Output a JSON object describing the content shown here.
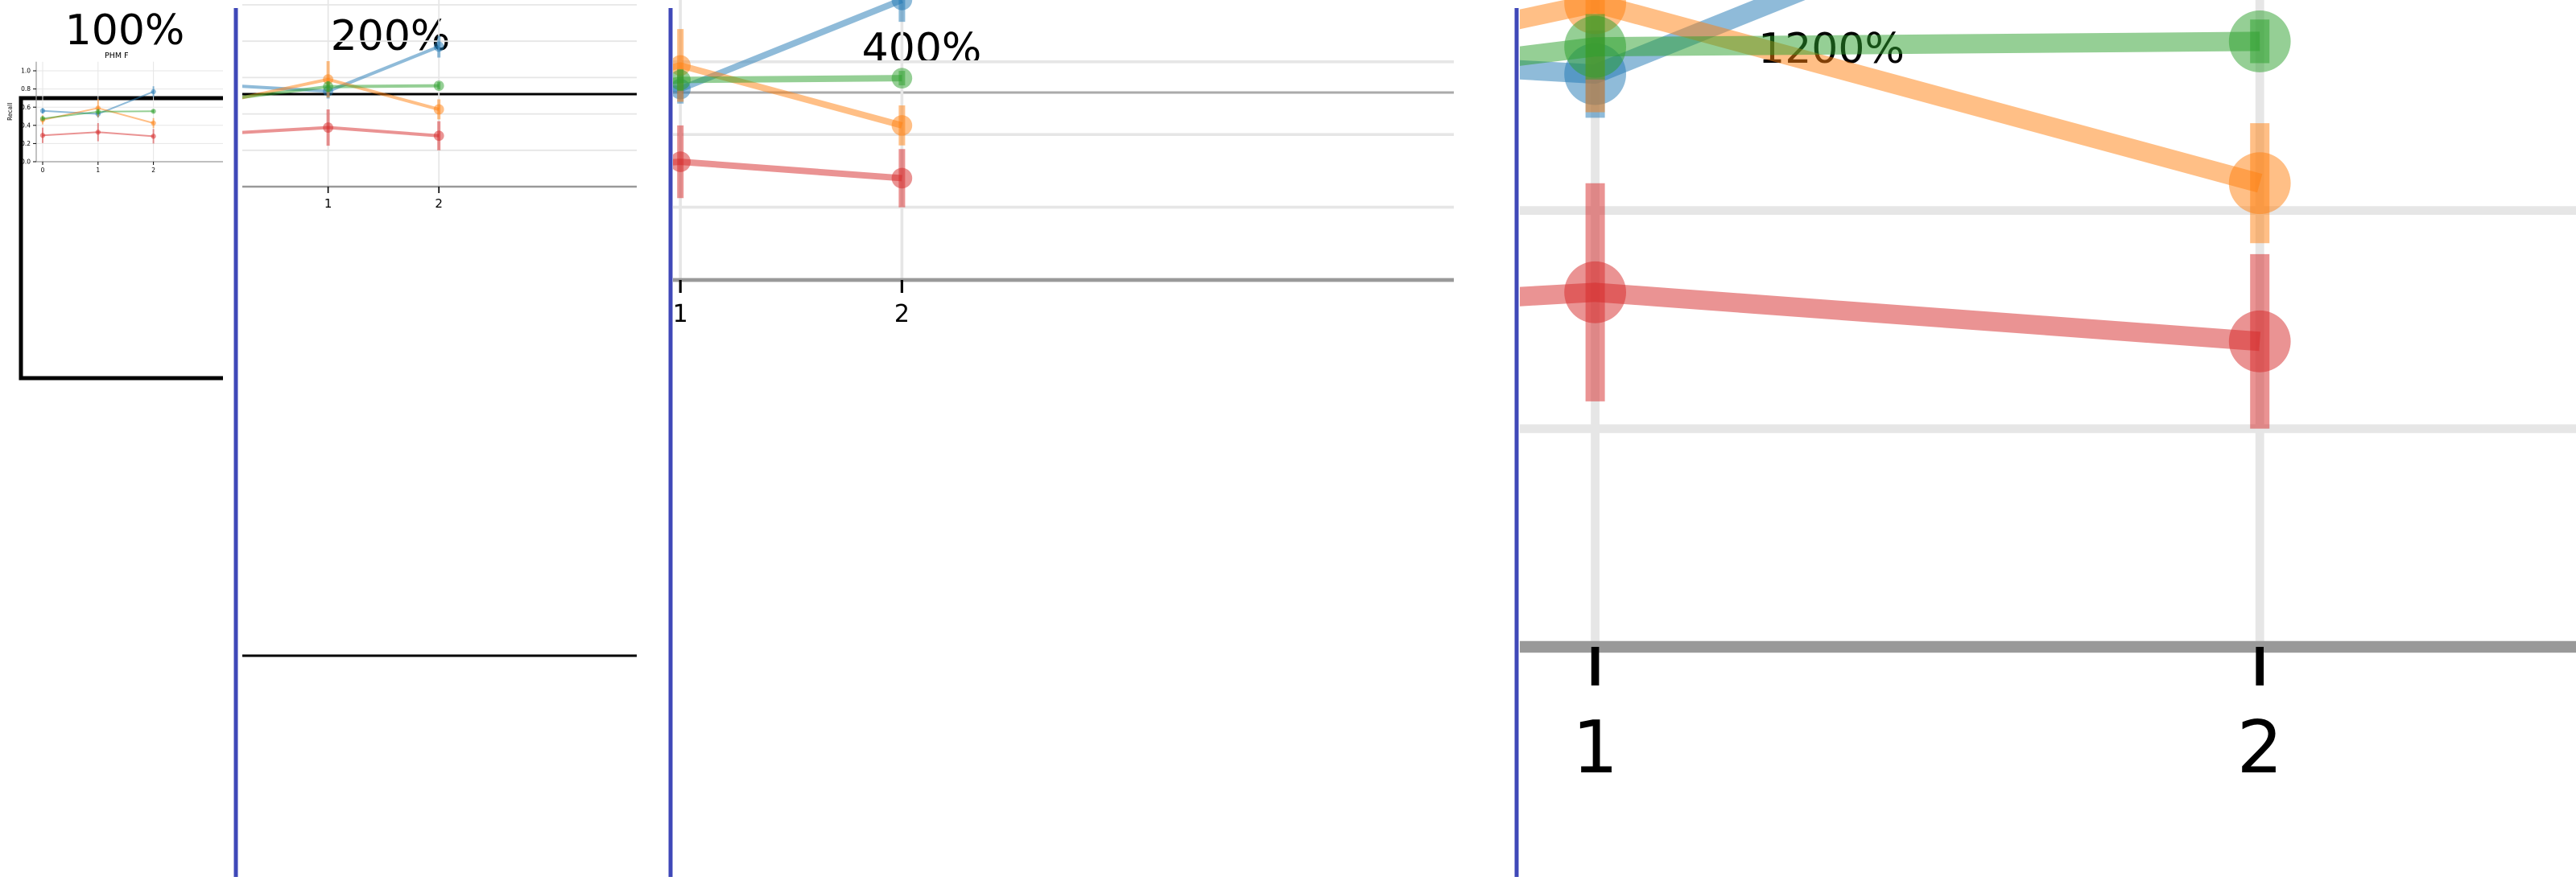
{
  "panels": [
    {
      "zoom_label": "100%"
    },
    {
      "zoom_label": "200%"
    },
    {
      "zoom_label": "400%"
    },
    {
      "zoom_label": "1200%"
    }
  ],
  "colors": {
    "divider": "#3f48b8",
    "series_blue": "#1f77b4",
    "series_orange": "#ff7f0e",
    "series_green": "#2ca02c",
    "series_red": "#d62728",
    "axis": "#999999",
    "grid": "#e6e6e6"
  },
  "chart_data": {
    "type": "line",
    "title": "PHM F",
    "xlabel": "",
    "ylabel": "Recall",
    "x": [
      0,
      1,
      2
    ],
    "xlim": [
      -0.5,
      2.5
    ],
    "ylim": [
      0,
      1.1
    ],
    "yticks": [
      "0.0",
      "0.2",
      "0.4",
      "0.6",
      "0.8",
      "1.0"
    ],
    "xticks": [
      "0",
      "1",
      "2"
    ],
    "grid": true,
    "series": [
      {
        "color_key": "series_blue",
        "values": [
          0.56,
          0.525,
          0.77
        ],
        "err": [
          0.03,
          0.04,
          0.06
        ]
      },
      {
        "color_key": "series_orange",
        "values": [
          0.46,
          0.59,
          0.425
        ],
        "err": [
          0.05,
          0.1,
          0.055
        ]
      },
      {
        "color_key": "series_green",
        "values": [
          0.475,
          0.55,
          0.555
        ],
        "err": [
          0.02,
          0.03,
          0.02
        ]
      },
      {
        "color_key": "series_red",
        "values": [
          0.29,
          0.325,
          0.28
        ],
        "err": [
          0.085,
          0.1,
          0.08
        ]
      }
    ]
  }
}
